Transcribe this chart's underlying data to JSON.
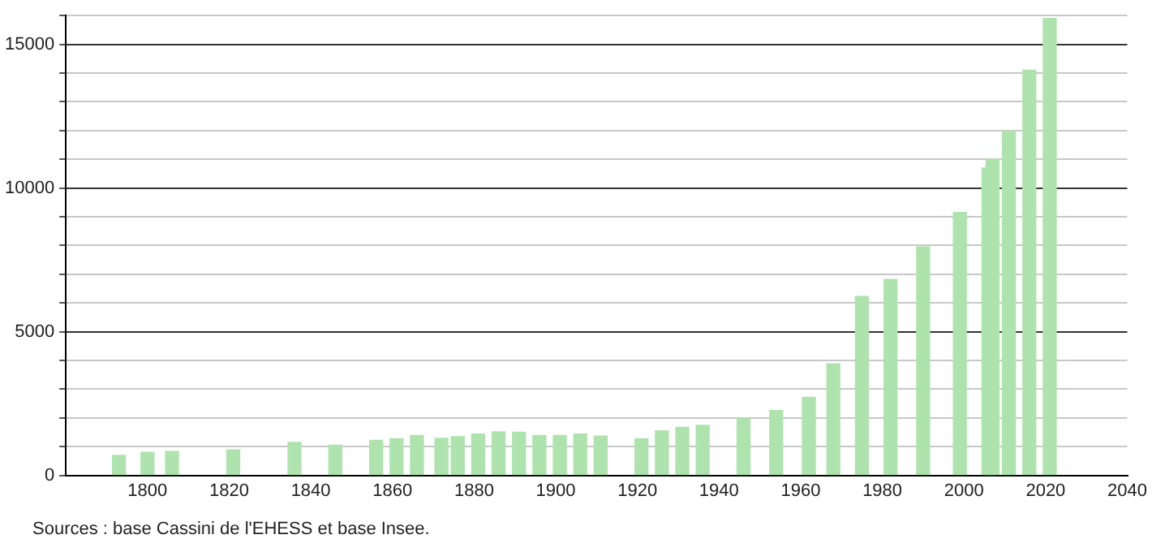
{
  "chart_data": {
    "type": "bar",
    "x": [
      1793,
      1800,
      1806,
      1821,
      1836,
      1846,
      1856,
      1861,
      1866,
      1872,
      1876,
      1881,
      1886,
      1891,
      1896,
      1901,
      1906,
      1911,
      1921,
      1926,
      1931,
      1936,
      1946,
      1954,
      1962,
      1968,
      1975,
      1982,
      1990,
      1999,
      2006,
      2007,
      2011,
      2016,
      2021
    ],
    "values": [
      700,
      800,
      830,
      890,
      1150,
      1050,
      1220,
      1280,
      1390,
      1290,
      1350,
      1440,
      1520,
      1500,
      1390,
      1390,
      1440,
      1370,
      1280,
      1550,
      1670,
      1740,
      1980,
      2260,
      2720,
      3880,
      6230,
      6820,
      7950,
      9150,
      10700,
      11000,
      11980,
      14100,
      15900
    ],
    "color": "#aee3ae",
    "xlim": [
      1780,
      2040
    ],
    "xticks": [
      1800,
      1820,
      1840,
      1860,
      1880,
      1900,
      1920,
      1940,
      1960,
      1980,
      2000,
      2020,
      2040
    ],
    "ylim": [
      0,
      16000
    ],
    "yticks": [
      0,
      {
        "value": 1000,
        "label": null
      },
      {
        "value": 2000,
        "label": null
      },
      {
        "value": 3000,
        "label": null
      },
      {
        "value": 4000,
        "label": null
      },
      5000,
      {
        "value": 6000,
        "label": null
      },
      {
        "value": 7000,
        "label": null
      },
      {
        "value": 8000,
        "label": null
      },
      {
        "value": 9000,
        "label": null
      },
      10000,
      {
        "value": 11000,
        "label": null
      },
      {
        "value": 12000,
        "label": null
      },
      {
        "value": 13000,
        "label": null
      },
      {
        "value": 14000,
        "label": null
      },
      15000,
      {
        "value": 16000,
        "label": null
      }
    ],
    "grid": "y",
    "legend": false,
    "annotations": [
      "Sources : base Cassini de l'EHESS et base Insee."
    ]
  }
}
